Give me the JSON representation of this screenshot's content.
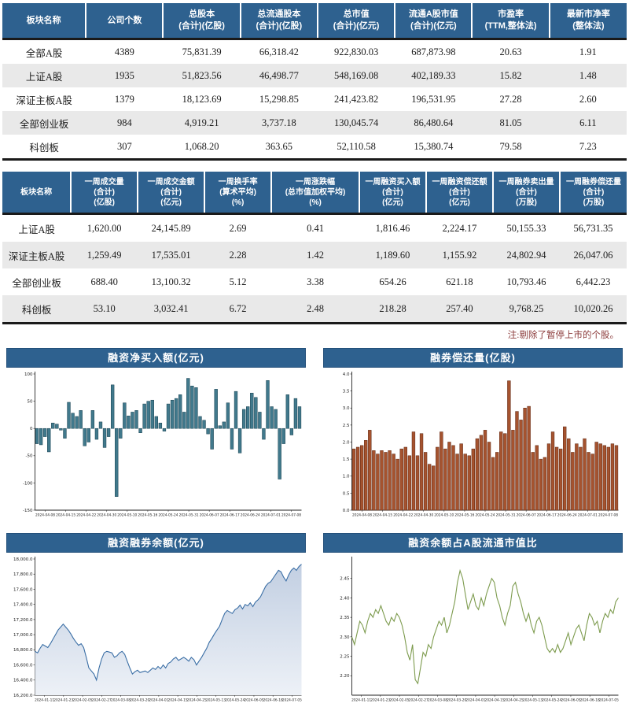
{
  "theme": {
    "header_bg": "#2e618f",
    "row_alt_bg": "#e9e9e9",
    "note_color": "#8b3a3a"
  },
  "table1": {
    "headers": [
      "板块名称",
      "公司个数",
      "总股本\n(合计)(亿股)",
      "总流通股本\n(合计)(亿股)",
      "总市值\n(合计)(亿元)",
      "流通A股市值\n(合计)(亿元)",
      "市盈率\n(TTM,整体法)",
      "最新市净率\n(整体法)"
    ],
    "rows": [
      [
        "全部A股",
        "4389",
        "75,831.39",
        "66,318.42",
        "922,830.03",
        "687,873.98",
        "20.63",
        "1.91"
      ],
      [
        "上证A股",
        "1935",
        "51,823.56",
        "46,498.77",
        "548,169.08",
        "402,189.33",
        "15.82",
        "1.48"
      ],
      [
        "深证主板A股",
        "1379",
        "18,123.69",
        "15,298.85",
        "241,423.82",
        "196,531.95",
        "27.28",
        "2.60"
      ],
      [
        "全部创业板",
        "984",
        "4,919.21",
        "3,737.18",
        "130,045.74",
        "86,480.64",
        "81.05",
        "6.11"
      ],
      [
        "科创板",
        "307",
        "1,068.20",
        "363.65",
        "52,110.58",
        "15,380.74",
        "79.58",
        "7.23"
      ]
    ]
  },
  "table2": {
    "headers": [
      "板块名称",
      "一周成交量\n(合计)\n(亿股)",
      "一周成交金额\n(合计)\n(亿元)",
      "一周换手率\n(算术平均)\n(%)",
      "一周涨跌幅\n(总市值加权平均)\n(%)",
      "一周融资买入额\n(合计)\n(亿元)",
      "一周融资偿还额\n(合计)\n(亿元)",
      "一周融券卖出量\n(合计)\n(万股)",
      "一周融券偿还量\n(合计)\n(万股)"
    ],
    "rows": [
      [
        "上证A股",
        "1,620.00",
        "24,145.89",
        "2.69",
        "0.41",
        "1,816.46",
        "2,224.17",
        "50,155.33",
        "56,731.35"
      ],
      [
        "深证主板A股",
        "1,259.49",
        "17,535.01",
        "2.28",
        "1.42",
        "1,189.60",
        "1,155.92",
        "24,802.94",
        "26,047.06"
      ],
      [
        "全部创业板",
        "688.40",
        "13,100.32",
        "5.12",
        "3.38",
        "654.26",
        "621.18",
        "10,793.46",
        "6,442.23"
      ],
      [
        "科创板",
        "53.10",
        "3,032.41",
        "6.72",
        "2.48",
        "218.28",
        "257.40",
        "9,768.25",
        "10,020.26"
      ]
    ]
  },
  "note": "注:剔除了暂停上市的个股。",
  "chart_data": [
    {
      "type": "bar",
      "title": "融资净买入额(亿元)",
      "color": "#41798c",
      "border": "#173f4e",
      "ylim": [
        -150,
        100
      ],
      "ytick_values": [
        100,
        50,
        0,
        -50,
        -100,
        -150
      ],
      "ytick_labels": [
        "100",
        "50",
        "0",
        "-50",
        "-100",
        "-150"
      ],
      "xticklabels": [
        "2024-04-08",
        "2024-04-15",
        "2024-04-22",
        "2024-04-30",
        "2024-05-10",
        "2024-05-16",
        "2024-05-24",
        "2024-05-31",
        "2024-06-07",
        "2024-06-17",
        "2024-06-24",
        "2024-07-01",
        "2024-07-08"
      ],
      "values": [
        -28,
        -30,
        -15,
        -43,
        10,
        8,
        -3,
        -18,
        48,
        28,
        22,
        33,
        -32,
        -25,
        33,
        -20,
        12,
        -35,
        -15,
        80,
        -125,
        -18,
        47,
        23,
        30,
        33,
        -8,
        45,
        50,
        52,
        22,
        10,
        -5,
        45,
        52,
        55,
        62,
        30,
        92,
        78,
        75,
        22,
        15,
        -10,
        -38,
        72,
        5,
        12,
        47,
        -38,
        68,
        -45,
        35,
        40,
        65,
        57,
        30,
        -20,
        88,
        40,
        35,
        -93,
        -28,
        62,
        -12,
        55,
        40
      ]
    },
    {
      "type": "bar",
      "title": "融券偿还量(亿股)",
      "color": "#a5532f",
      "border": "#5e2712",
      "ylim": [
        0,
        4
      ],
      "ytick_values": [
        4.0,
        3.5,
        3.0,
        2.5,
        2.0,
        1.5,
        1.0,
        0.5,
        0.0
      ],
      "ytick_labels": [
        "4.0",
        "3.5",
        "3.0",
        "2.5",
        "2.0",
        "1.5",
        "1.0",
        "0.5",
        "0.0"
      ],
      "xticklabels": [
        "2024-04-08",
        "2024-04-15",
        "2024-04-22",
        "2024-04-30",
        "2024-05-10",
        "2024-05-16",
        "2024-05-24",
        "2024-05-31",
        "2024-06-07",
        "2024-06-17",
        "2024-06-24",
        "2024-07-01",
        "2024-07-08"
      ],
      "values": [
        1.8,
        1.85,
        1.9,
        2.05,
        2.35,
        1.75,
        1.65,
        1.75,
        1.7,
        1.75,
        1.65,
        1.5,
        1.8,
        1.85,
        1.6,
        2.3,
        1.6,
        2.25,
        1.7,
        1.35,
        1.3,
        1.85,
        2.3,
        1.8,
        2.0,
        1.9,
        1.65,
        1.95,
        1.65,
        1.6,
        1.8,
        2.1,
        2.2,
        2.35,
        2.0,
        1.55,
        1.7,
        2.3,
        2.25,
        3.8,
        2.35,
        2.9,
        2.65,
        3.0,
        3.05,
        1.7,
        1.9,
        1.5,
        1.55,
        1.95,
        2.3,
        1.85,
        1.8,
        2.45,
        2.1,
        1.7,
        1.95,
        1.85,
        2.1,
        1.7,
        1.65,
        2.0,
        1.95,
        1.9,
        1.85,
        1.95,
        1.9
      ]
    },
    {
      "type": "area",
      "title": "融资融券余额(亿元)",
      "color": "#3a6ea5",
      "fill_top": "#c2cfe2",
      "fill_bottom": "#edf1f7",
      "ylim": [
        16200,
        18000
      ],
      "ytick_values": [
        18000,
        17800,
        17600,
        17400,
        17200,
        17000,
        16800,
        16600,
        16400,
        16200
      ],
      "ytick_labels": [
        "18,000.0",
        "17,800.0",
        "17,600.0",
        "17,400.0",
        "17,200.0",
        "17,000.0",
        "16,800.0",
        "16,600.0",
        "16,400.0",
        "16,200.0"
      ],
      "xticklabels": [
        "2024-01-11",
        "2024-01-23",
        "2024-02-05",
        "2024-02-27",
        "2024-03-08",
        "2024-03-20",
        "2024-04-01",
        "2024-04-15",
        "2024-04-25",
        "2024-05-13",
        "2024-05-24",
        "2024-06-05",
        "2024-06-18",
        "2024-07-05"
      ],
      "values": [
        16780,
        16760,
        16820,
        16870,
        16850,
        16830,
        16880,
        16940,
        17000,
        17060,
        17100,
        17140,
        17100,
        17060,
        17010,
        16950,
        16900,
        16860,
        16880,
        16830,
        16700,
        16560,
        16520,
        16480,
        16400,
        16560,
        16680,
        16760,
        16780,
        16770,
        16760,
        16700,
        16720,
        16760,
        16780,
        16740,
        16650,
        16560,
        16480,
        16510,
        16530,
        16500,
        16510,
        16520,
        16500,
        16530,
        16560,
        16540,
        16580,
        16550,
        16600,
        16560,
        16620,
        16640,
        16680,
        16700,
        16660,
        16680,
        16700,
        16680,
        16650,
        16700,
        16670,
        16600,
        16650,
        16700,
        16760,
        16820,
        16900,
        16950,
        17010,
        17060,
        17110,
        17200,
        17280,
        17320,
        17300,
        17280,
        17330,
        17350,
        17390,
        17340,
        17400,
        17380,
        17420,
        17370,
        17430,
        17460,
        17500,
        17570,
        17640,
        17680,
        17700,
        17750,
        17800,
        17850,
        17830,
        17760,
        17710,
        17790,
        17850,
        17880,
        17850,
        17900,
        17930
      ]
    },
    {
      "type": "line",
      "title": "融资余额占A股流通市值比",
      "color": "#7d9b4e",
      "ylim": [
        2.15,
        2.5
      ],
      "ytick_values": [
        2.45,
        2.4,
        2.35,
        2.3,
        2.25,
        2.2
      ],
      "ytick_labels": [
        "2.45",
        "2.40",
        "2.35",
        "2.30",
        "2.25",
        "2.20"
      ],
      "xticklabels": [
        "2024-01-11",
        "2024-01-23",
        "2024-02-05",
        "2024-02-27",
        "2024-03-08",
        "2024-03-20",
        "2024-04-01",
        "2024-04-15",
        "2024-04-25",
        "2024-05-13",
        "2024-05-24",
        "2024-06-05",
        "2024-06-18",
        "2024-07-05"
      ],
      "values": [
        2.3,
        2.28,
        2.31,
        2.34,
        2.33,
        2.31,
        2.34,
        2.36,
        2.35,
        2.37,
        2.36,
        2.38,
        2.36,
        2.34,
        2.33,
        2.35,
        2.34,
        2.36,
        2.35,
        2.33,
        2.3,
        2.26,
        2.24,
        2.28,
        2.19,
        2.18,
        2.22,
        2.26,
        2.25,
        2.28,
        2.27,
        2.3,
        2.32,
        2.34,
        2.33,
        2.35,
        2.31,
        2.33,
        2.36,
        2.39,
        2.44,
        2.47,
        2.45,
        2.41,
        2.37,
        2.39,
        2.41,
        2.38,
        2.37,
        2.4,
        2.38,
        2.41,
        2.43,
        2.45,
        2.44,
        2.4,
        2.38,
        2.35,
        2.33,
        2.36,
        2.38,
        2.43,
        2.44,
        2.41,
        2.39,
        2.36,
        2.34,
        2.36,
        2.33,
        2.31,
        2.34,
        2.35,
        2.33,
        2.3,
        2.27,
        2.26,
        2.27,
        2.26,
        2.28,
        2.26,
        2.27,
        2.29,
        2.31,
        2.28,
        2.3,
        2.32,
        2.33,
        2.31,
        2.29,
        2.33,
        2.36,
        2.35,
        2.33,
        2.34,
        2.31,
        2.34,
        2.36,
        2.35,
        2.37,
        2.36,
        2.39,
        2.4
      ]
    }
  ]
}
